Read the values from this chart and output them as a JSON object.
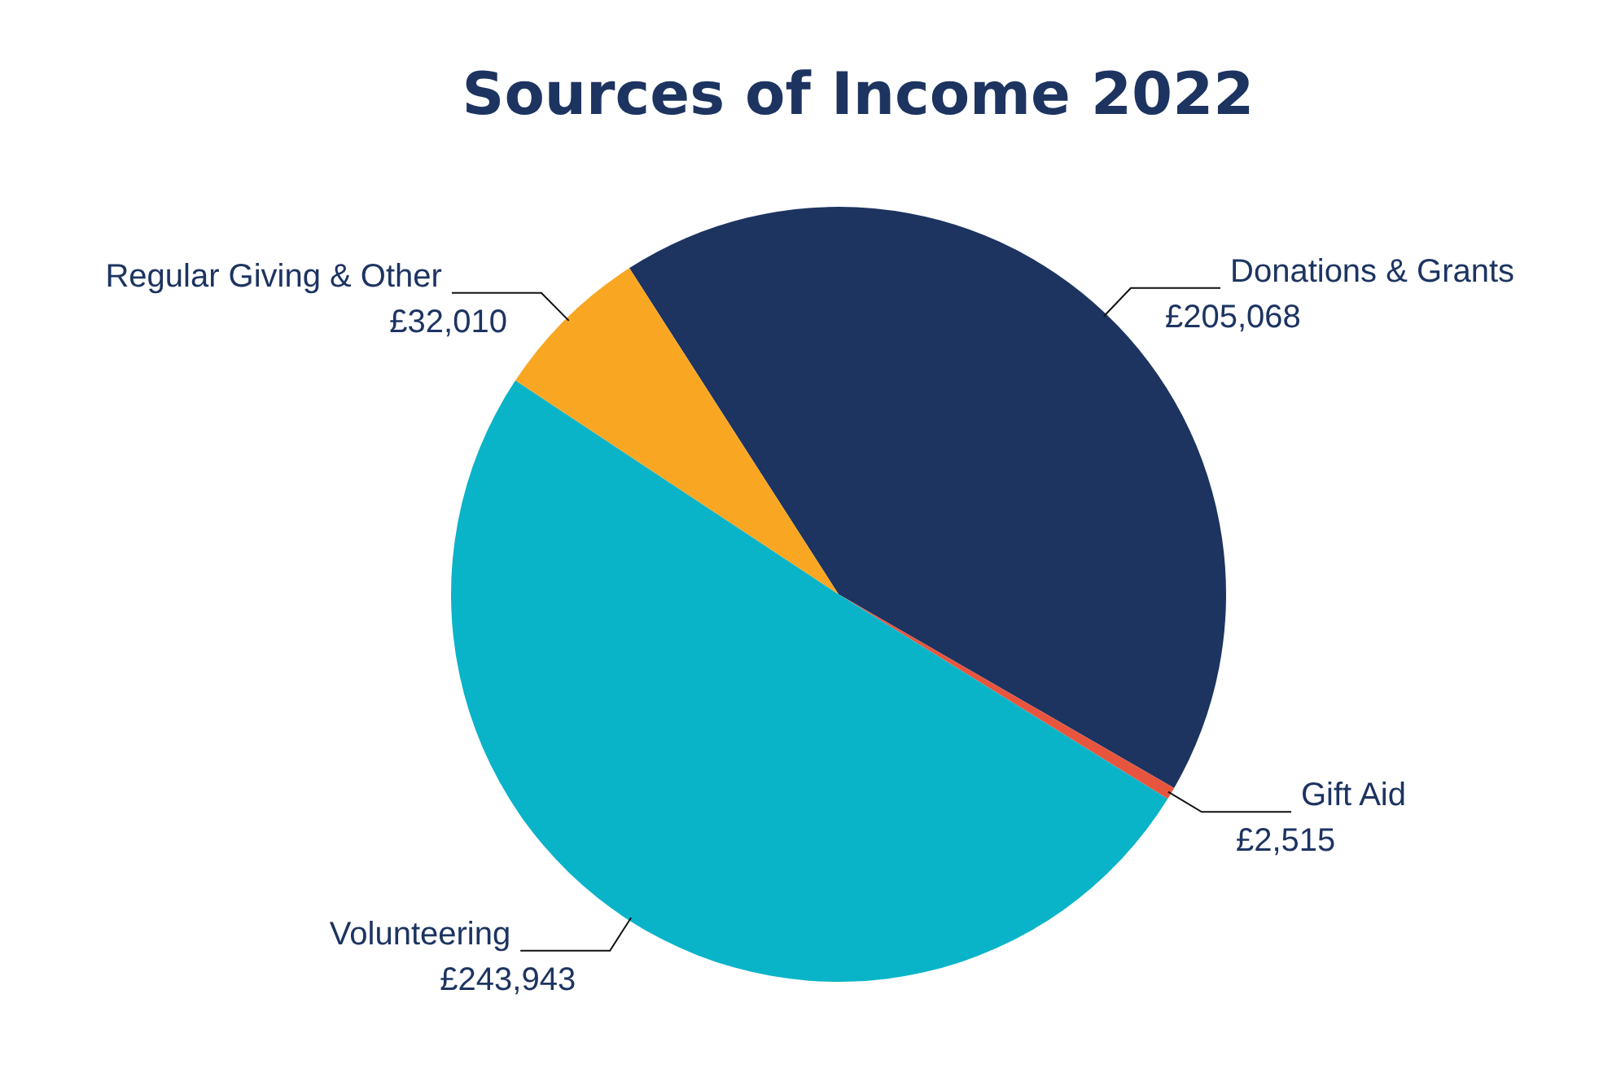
{
  "chart_data": {
    "type": "pie",
    "title": "Sources of Income 2022",
    "categories": [
      "Donations & Grants",
      "Gift Aid",
      "Volunteering",
      "Regular Giving & Other"
    ],
    "values": [
      205068,
      2515,
      243943,
      32010
    ],
    "value_labels": [
      "£205,068",
      "£2,515",
      "£243,943",
      "£32,010"
    ],
    "colors": [
      "#1d3461",
      "#e8553e",
      "#0ab4c8",
      "#f9a623"
    ],
    "legend": false
  }
}
